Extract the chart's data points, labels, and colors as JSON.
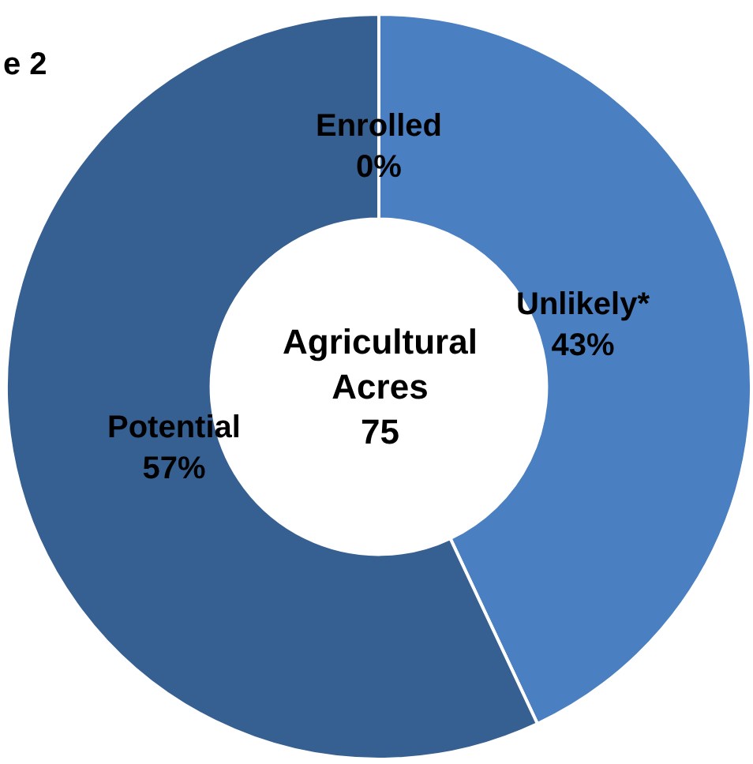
{
  "chart_data": {
    "type": "donut",
    "categories": [
      "Enrolled",
      "Unlikely*",
      "Potential"
    ],
    "values": [
      0,
      43,
      57
    ],
    "colors": [
      "#ffffff",
      "#4a7fc1",
      "#376092"
    ],
    "value_labels": [
      "0%",
      "43%",
      "57%"
    ],
    "annotations": [
      "e 2",
      "Agricultural\nAcres\n75"
    ]
  }
}
